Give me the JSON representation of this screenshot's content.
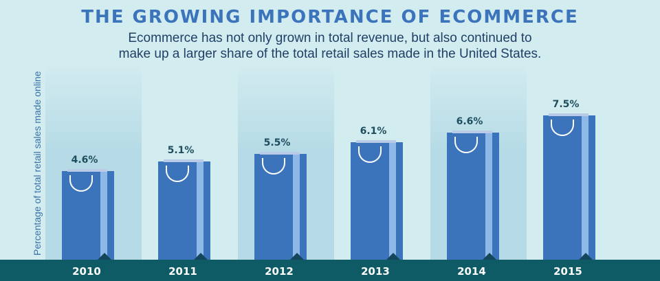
{
  "header": {
    "title": "THE GROWING IMPORTANCE OF ECOMMERCE",
    "subtitle_line1": "Ecommerce has not only grown in total revenue, but also continued to",
    "subtitle_line2": "make up a larger share of the total retail sales made in the United States."
  },
  "colors": {
    "background": "#d3ecf0",
    "band": "#b6dbe6",
    "bar": "#3b74bb",
    "bar_side": "#8db8e8",
    "footer": "#0e5b66",
    "title": "#3b74bb"
  },
  "chart_data": {
    "type": "bar",
    "title": "THE GROWING IMPORTANCE OF ECOMMERCE",
    "ylabel": "Percentage of total retail sales made online",
    "xlabel": "",
    "categories": [
      "2010",
      "2011",
      "2012",
      "2013",
      "2014",
      "2015"
    ],
    "values": [
      4.6,
      5.1,
      5.5,
      6.1,
      6.6,
      7.5
    ],
    "value_labels": [
      "4.6%",
      "5.1%",
      "5.5%",
      "6.1%",
      "6.6%",
      "7.5%"
    ],
    "grid": false,
    "legend": "none"
  }
}
